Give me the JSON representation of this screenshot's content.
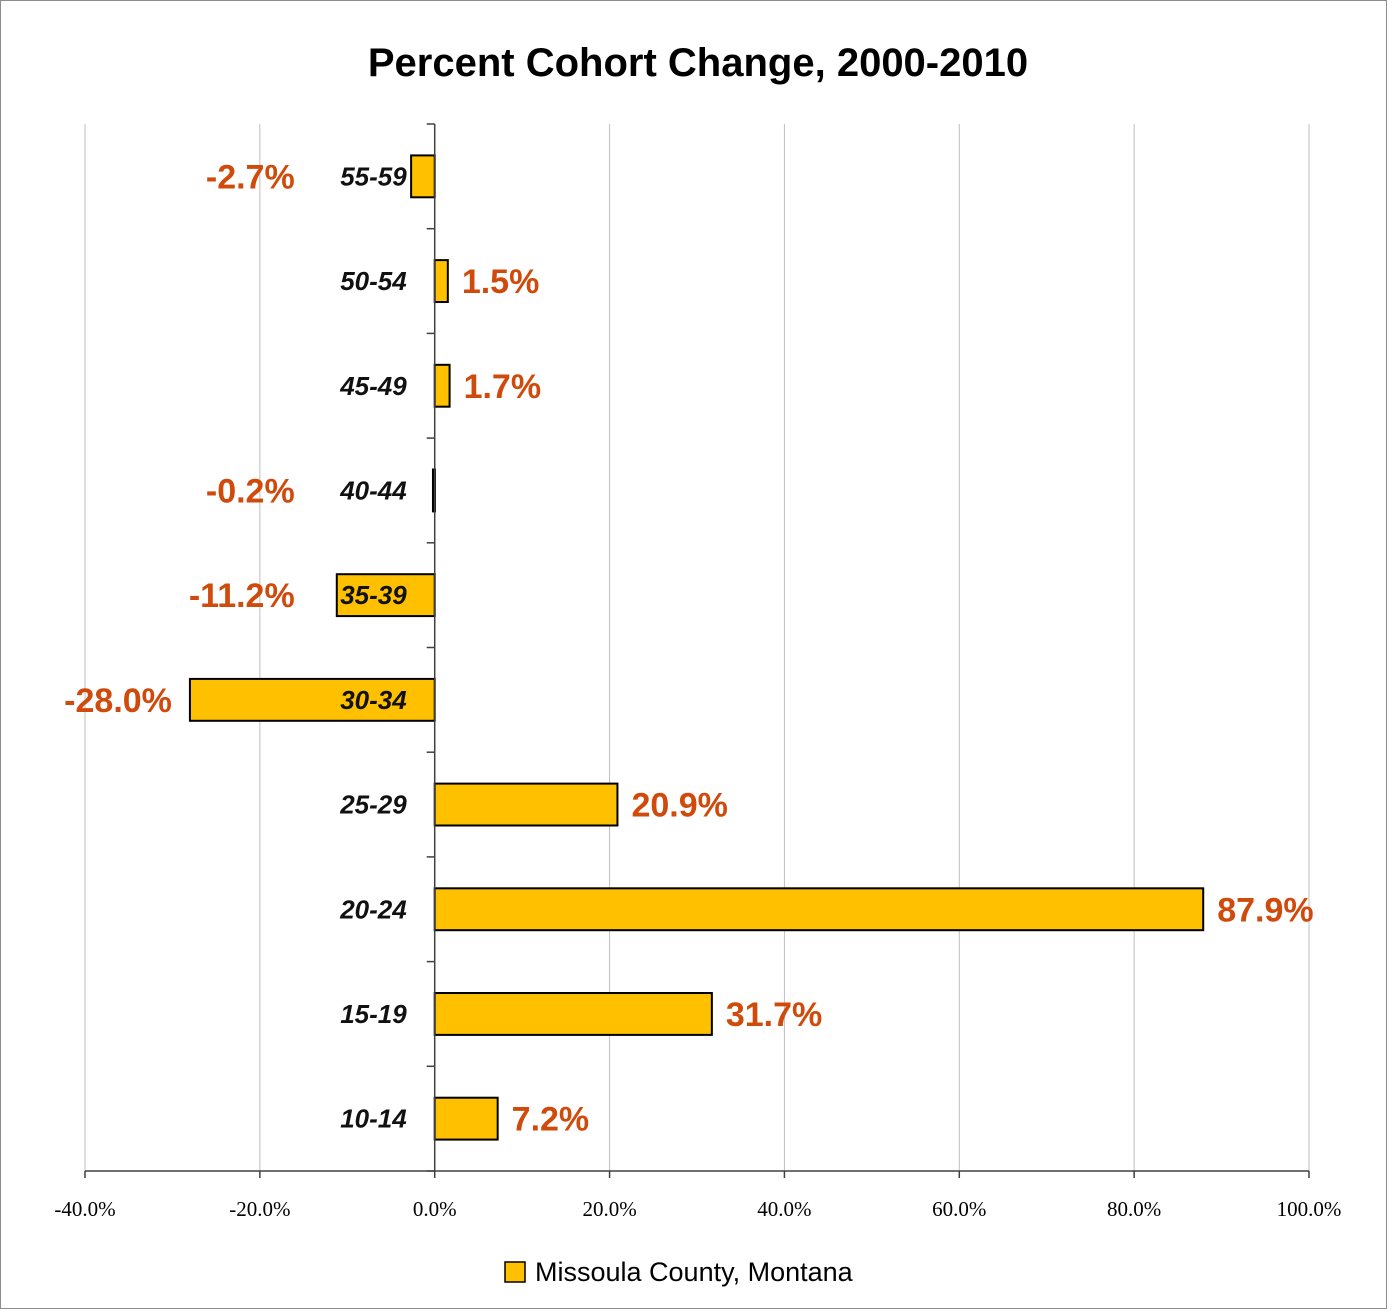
{
  "chart_data": {
    "type": "bar",
    "orientation": "horizontal",
    "title": "Percent Cohort Change, 2000-2010",
    "categories": [
      "55-59",
      "50-54",
      "45-49",
      "40-44",
      "35-39",
      "30-34",
      "25-29",
      "20-24",
      "15-19",
      "10-14"
    ],
    "series": [
      {
        "name": "Missoula County, Montana",
        "values": [
          -2.7,
          1.5,
          1.7,
          -0.2,
          -11.2,
          -28.0,
          20.9,
          87.9,
          31.7,
          7.2
        ],
        "data_labels": [
          "-2.7%",
          "1.5%",
          "1.7%",
          "-0.2%",
          "-11.2%",
          "-28.0%",
          "20.9%",
          "87.9%",
          "31.7%",
          "7.2%"
        ]
      }
    ],
    "xlim": [
      -40,
      100
    ],
    "x_ticks": [
      -40,
      -20,
      0,
      20,
      40,
      60,
      80,
      100
    ],
    "x_tick_labels": [
      "-40.0%",
      "-20.0%",
      "0.0%",
      "20.0%",
      "40.0%",
      "60.0%",
      "80.0%",
      "100.0%"
    ],
    "xlabel": "",
    "ylabel": "",
    "grid": "vertical",
    "legend_position": "bottom",
    "colors": {
      "bar_fill": "#ffc000",
      "bar_stroke": "#000000",
      "data_label": "#d04a0c",
      "gridline": "#bfbfbf"
    }
  }
}
